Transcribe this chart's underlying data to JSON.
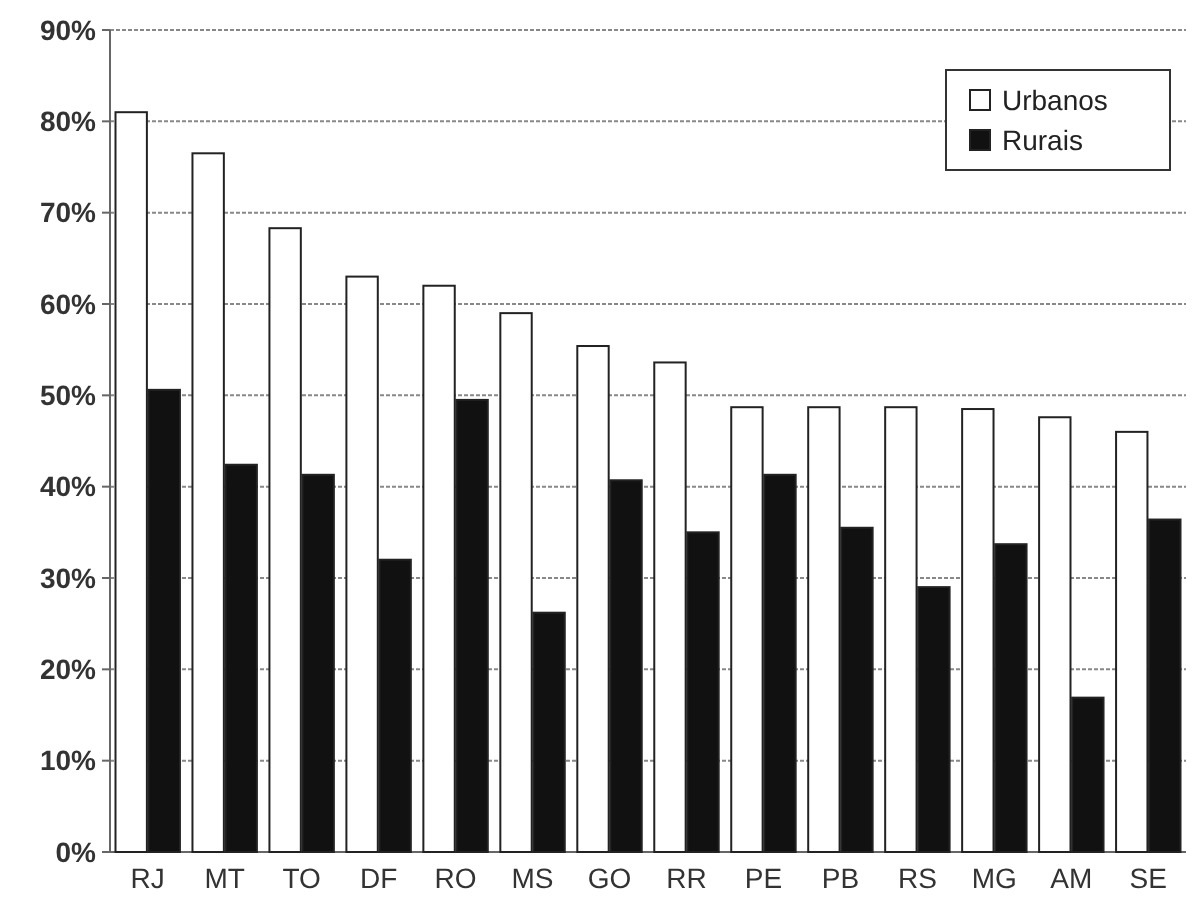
{
  "chart_data": {
    "type": "bar",
    "categories": [
      "RJ",
      "MT",
      "TO",
      "DF",
      "RO",
      "MS",
      "GO",
      "RR",
      "PE",
      "PB",
      "RS",
      "MG",
      "AM",
      "SE"
    ],
    "series": [
      {
        "name": "Urbanos",
        "color": "#ffffff",
        "values": [
          81,
          76.5,
          68.3,
          63,
          62,
          59,
          55.4,
          53.6,
          48.7,
          48.7,
          48.7,
          48.5,
          47.6,
          46
        ]
      },
      {
        "name": "Rurais",
        "color": "#111111",
        "values": [
          50.6,
          42.4,
          41.3,
          32,
          49.5,
          26.2,
          40.7,
          35,
          41.3,
          35.5,
          29,
          33.7,
          16.9,
          36.4
        ]
      }
    ],
    "ylim": [
      0,
      90
    ],
    "yticks": [
      {
        "value": 0,
        "label": "0%"
      },
      {
        "value": 10,
        "label": "10%"
      },
      {
        "value": 20,
        "label": "20%"
      },
      {
        "value": 30,
        "label": "30%"
      },
      {
        "value": 40,
        "label": "40%"
      },
      {
        "value": 50,
        "label": "50%"
      },
      {
        "value": 60,
        "label": "60%"
      },
      {
        "value": 70,
        "label": "70%"
      },
      {
        "value": 80,
        "label": "80%"
      },
      {
        "value": 90,
        "label": "90%"
      }
    ],
    "grid": "y",
    "legend": "top right"
  }
}
